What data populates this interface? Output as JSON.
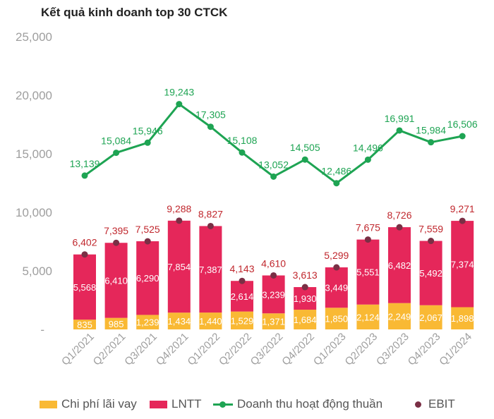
{
  "title": "Kết quả kinh doanh top 30 CTCK",
  "legend": {
    "interest": "Chi phí lãi vay",
    "lntt": "LNTT",
    "revenue": "Doanh thu hoạt động thuần",
    "ebit": "EBIT"
  },
  "colors": {
    "interest": "#F9B934",
    "lntt": "#E5275A",
    "revenue": "#1EA453",
    "ebit": "#7A2F45",
    "ebit_label": "#C0272D",
    "axis_text": "#9E9E9E"
  },
  "chart_data": {
    "type": "bar",
    "title": "Kết quả kinh doanh top 30 CTCK",
    "xlabel": "",
    "ylabel": "",
    "ylim": [
      0,
      25000
    ],
    "yticks": [
      0,
      5000,
      10000,
      15000,
      20000,
      25000
    ],
    "ytick_labels": [
      "-",
      "5,000",
      "10,000",
      "15,000",
      "20,000",
      "25,000"
    ],
    "grid": false,
    "legend_position": "bottom",
    "categories": [
      "Q1/2021",
      "Q2/2021",
      "Q3/2021",
      "Q4/2021",
      "Q1/2022",
      "Q2/2022",
      "Q3/2022",
      "Q4/2022",
      "Q1/2023",
      "Q2/2023",
      "Q3/2023",
      "Q4/2023",
      "Q1/2024"
    ],
    "series": [
      {
        "name": "Chi phí lãi vay",
        "kind": "stacked-bar",
        "values": [
          835,
          985,
          1239,
          1434,
          1440,
          1529,
          1371,
          1684,
          1850,
          2124,
          2249,
          2067,
          1898
        ],
        "labels": [
          "835",
          "985",
          "1,239",
          "1,434",
          "1,440",
          "1,529",
          "1,371",
          "1,684",
          "1,850",
          "2,124",
          "2,249",
          "2,067",
          "1,898"
        ]
      },
      {
        "name": "LNTT",
        "kind": "stacked-bar",
        "values": [
          5568,
          6410,
          6290,
          7854,
          7387,
          2614,
          3239,
          1930,
          3449,
          5551,
          6482,
          5492,
          7374
        ],
        "labels": [
          "5,568",
          "6,410",
          "6,290",
          "7,854",
          "7,387",
          "2,614",
          "3,239",
          "1,930",
          "3,449",
          "5,551",
          "6,482",
          "5,492",
          "7,374"
        ]
      },
      {
        "name": "Doanh thu hoạt động thuần",
        "kind": "line",
        "values": [
          13139,
          15084,
          15946,
          19243,
          17305,
          15108,
          13052,
          14505,
          12486,
          14496,
          16991,
          15984,
          16506
        ],
        "labels": [
          "13,139",
          "15,084",
          "15,946",
          "19,243",
          "17,305",
          "15,108",
          "13,052",
          "14,505",
          "12,486",
          "14,496",
          "16,991",
          "15,984",
          "16,506"
        ]
      },
      {
        "name": "EBIT",
        "kind": "dot",
        "values": [
          6402,
          7395,
          7525,
          9288,
          8827,
          4143,
          4610,
          3613,
          5299,
          7675,
          8726,
          7559,
          9271
        ],
        "labels": [
          "6,402",
          "7,395",
          "7,525",
          "9,288",
          "8,827",
          "4,143",
          "4,610",
          "3,613",
          "5,299",
          "7,675",
          "8,726",
          "7,559",
          "9,271"
        ]
      }
    ]
  }
}
